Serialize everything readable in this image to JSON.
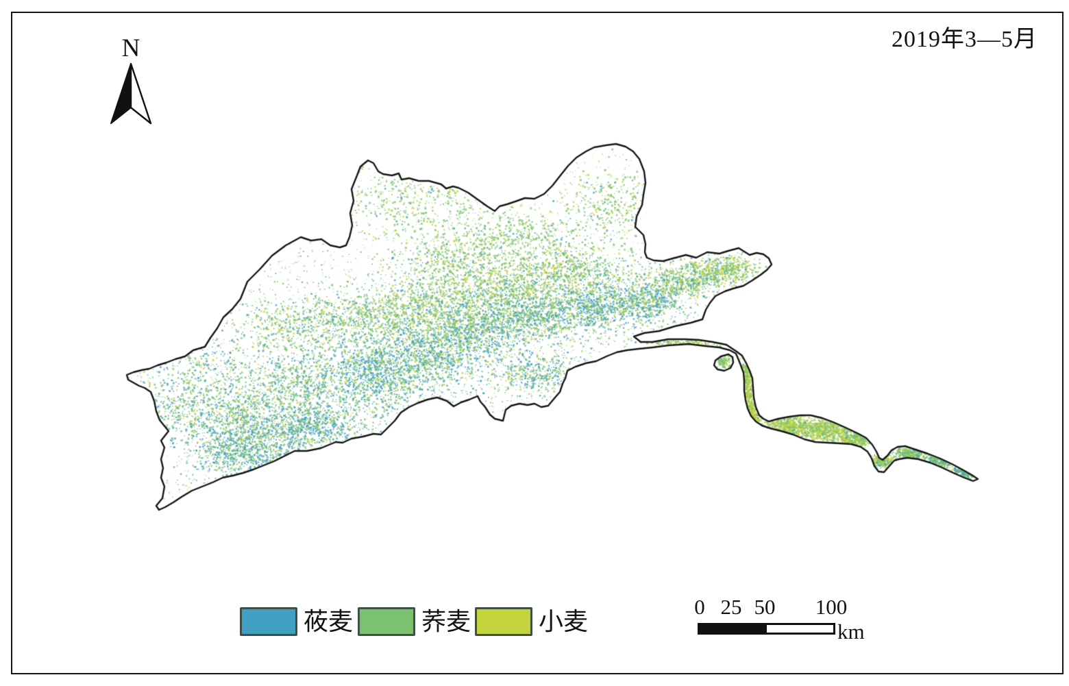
{
  "figure": {
    "date_label": "2019年3—5月"
  },
  "north_arrow": {
    "label": "N"
  },
  "legend": {
    "items": [
      {
        "label": "莜麦",
        "color": "#41A0C1"
      },
      {
        "label": "荞麦",
        "color": "#7CC26E"
      },
      {
        "label": "小麦",
        "color": "#C2D33C"
      }
    ]
  },
  "scale_bar": {
    "ticks": [
      "0",
      "25",
      "50",
      "100"
    ],
    "unit": "km",
    "filled_color": "#111111",
    "empty_color": "#ffffff"
  },
  "map": {
    "outline_color": "#161616",
    "background": "#ffffff",
    "speckle_dark_color": "#2f6f82"
  }
}
